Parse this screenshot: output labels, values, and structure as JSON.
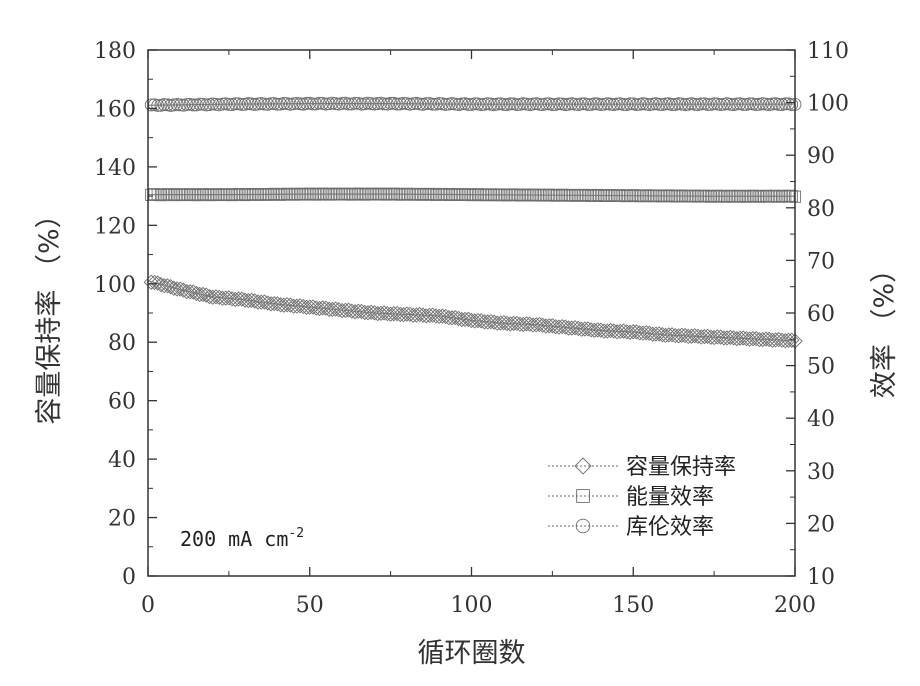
{
  "chart_data": {
    "type": "line",
    "xlabel": "循环圈数",
    "ylabel_left": "容量保持率 （%）",
    "ylabel_right": "效率 （%）",
    "xlim": [
      0,
      200
    ],
    "ylim_left": [
      0,
      180
    ],
    "ylim_right": [
      10,
      110
    ],
    "x_ticks": [
      0,
      50,
      100,
      150,
      200
    ],
    "y_left_ticks": [
      0,
      20,
      40,
      60,
      80,
      100,
      120,
      140,
      160,
      180
    ],
    "y_right_ticks": [
      10,
      20,
      30,
      40,
      50,
      60,
      70,
      80,
      90,
      100,
      110
    ],
    "annotation": {
      "text": "200 mA cm",
      "superscript": "-2"
    },
    "legend_position": "bottom-right",
    "series": [
      {
        "name": "容量保持率",
        "marker": "diamond",
        "axis": "left",
        "x": [
          0,
          10,
          20,
          30,
          40,
          50,
          60,
          70,
          80,
          90,
          100,
          110,
          120,
          130,
          140,
          150,
          160,
          170,
          180,
          190,
          200
        ],
        "values": [
          101,
          98,
          95.5,
          94.5,
          93,
          92,
          91,
          90,
          89.5,
          89,
          87.5,
          86.5,
          86,
          85,
          84,
          83.5,
          82.5,
          82,
          81.5,
          81,
          80.5
        ]
      },
      {
        "name": "能量效率",
        "marker": "square",
        "axis": "right",
        "x": [
          0,
          25,
          50,
          75,
          100,
          125,
          150,
          175,
          200
        ],
        "values": [
          82.5,
          82.5,
          82.6,
          82.6,
          82.5,
          82.4,
          82.3,
          82.2,
          82.2
        ]
      },
      {
        "name": "库伦效率",
        "marker": "circle",
        "axis": "right",
        "x": [
          0,
          25,
          50,
          75,
          100,
          125,
          150,
          175,
          200
        ],
        "values": [
          99.5,
          99.7,
          99.8,
          99.8,
          99.7,
          99.7,
          99.7,
          99.7,
          99.7
        ]
      }
    ]
  }
}
